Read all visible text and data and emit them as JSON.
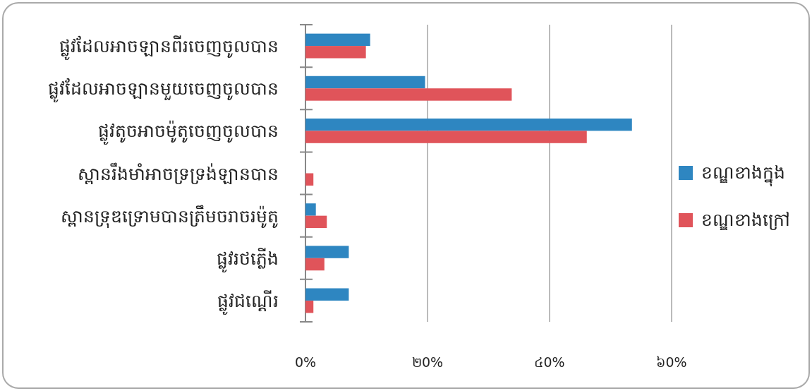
{
  "chart_data": {
    "type": "bar",
    "orientation": "horizontal",
    "categories": [
      "ផ្លូវដែលអាចឡានពីរចេញចូលបាន",
      "ផ្លូវដែលអាចឡានមួយចេញចូលបាន",
      "ផ្លូវតូចអាចម៉ូតូចេញចូលបាន",
      "ស្ពានរឹងមាំអាចទ្រទ្រង់ឡានបាន",
      "ស្ពានទ្រុឌទ្រោមបានត្រឹមចរាចរម៉ូតូ",
      "ផ្លូវរថភ្លើង",
      "ផ្លូវជណ្តើរ"
    ],
    "series": [
      {
        "name": "ខណ្ឌខាងក្នុង",
        "color": "#2e86c1",
        "values": [
          10.6,
          19.6,
          53.5,
          0,
          1.7,
          7.1,
          7.1
        ]
      },
      {
        "name": "ខណ្ឌខាងក្រៅ",
        "color": "#e0545a",
        "values": [
          9.9,
          33.8,
          46.1,
          1.3,
          3.5,
          3.1,
          1.3
        ]
      }
    ],
    "xlim": [
      0,
      60
    ],
    "xticks": [
      {
        "value": 0,
        "label": "0%"
      },
      {
        "value": 20,
        "label": "២0%"
      },
      {
        "value": 40,
        "label": "៤0%"
      },
      {
        "value": 60,
        "label": "៦0%"
      }
    ],
    "grid": "x",
    "legend": "right"
  }
}
